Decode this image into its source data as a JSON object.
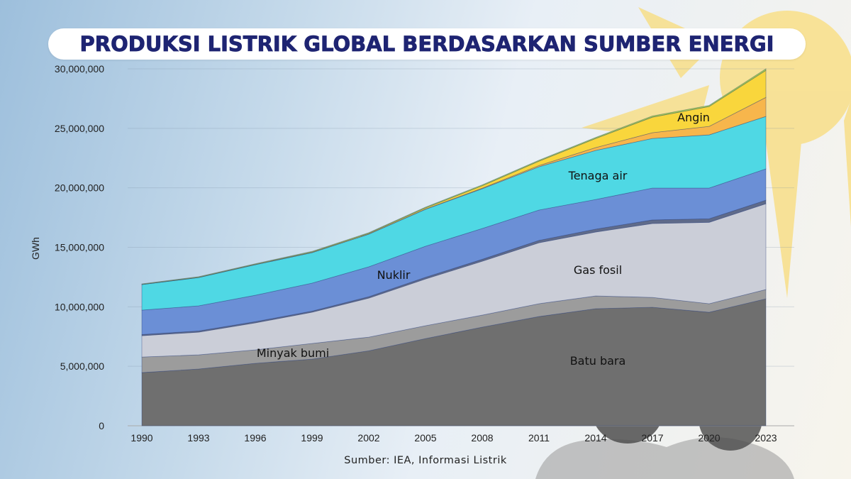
{
  "title": "PRODUKSI LISTRIK GLOBAL BERDASARKAN SUMBER ENERGI",
  "source": "Sumber: IEA, Informasi Listrik",
  "colors": {
    "title": "#1e2472",
    "sun": "#f9dc7a",
    "rocks": "#5b5b5b"
  },
  "chart_data": {
    "type": "area",
    "stacked": true,
    "title": "PRODUKSI LISTRIK GLOBAL BERDASARKAN SUMBER ENERGI",
    "xlabel": "",
    "ylabel": "GWh",
    "ylim": [
      0,
      30000000
    ],
    "grid": true,
    "x": [
      1990,
      1993,
      1996,
      1999,
      2002,
      2005,
      2008,
      2011,
      2014,
      2017,
      2020,
      2023
    ],
    "x_tick_labels": [
      "1990",
      "1993",
      "1996",
      "1999",
      "2002",
      "2005",
      "2008",
      "2011",
      "2014",
      "2017",
      "2020",
      "2023"
    ],
    "y_ticks": [
      0,
      5000000,
      10000000,
      15000000,
      20000000,
      25000000,
      30000000
    ],
    "y_tick_labels": [
      "0",
      "5,000,000",
      "10,000,000",
      "15,000,000",
      "20,000,000",
      "25,000,000",
      "30,000,000"
    ],
    "series": [
      {
        "name": "Batu bara",
        "color": "#6f6f6f",
        "values": [
          4470000,
          4770000,
          5250000,
          5600000,
          6300000,
          7330000,
          8290000,
          9180000,
          9840000,
          9960000,
          9540000,
          10670000
        ]
      },
      {
        "name": "Minyak bumi",
        "color": "#9c9c9c",
        "values": [
          1310000,
          1190000,
          1130000,
          1320000,
          1150000,
          1080000,
          1010000,
          1080000,
          1070000,
          830000,
          720000,
          780000
        ]
      },
      {
        "name": "Gas fosil",
        "color": "#cbced8",
        "values": [
          1790000,
          1910000,
          2270000,
          2620000,
          3280000,
          3930000,
          4530000,
          5120000,
          5370000,
          6210000,
          6840000,
          7210000
        ]
      },
      {
        "color": "#5f6b8a",
        "values": [
          100000,
          100000,
          100000,
          100000,
          120000,
          140000,
          160000,
          200000,
          250000,
          300000,
          300000,
          300000
        ]
      },
      {
        "name": "Nuklir",
        "color": "#6b8fd6",
        "values": [
          2050000,
          2110000,
          2220000,
          2350000,
          2510000,
          2610000,
          2590000,
          2550000,
          2490000,
          2680000,
          2580000,
          2630000
        ]
      },
      {
        "name": "Tenaga air",
        "color": "#4fd8e4",
        "values": [
          2150000,
          2380000,
          2570000,
          2560000,
          2740000,
          3100000,
          3340000,
          3640000,
          4120000,
          4170000,
          4470000,
          4410000
        ]
      },
      {
        "color": "#f7b64c",
        "values": [
          0,
          0,
          0,
          0,
          10000,
          20000,
          50000,
          100000,
          240000,
          480000,
          710000,
          1600000
        ]
      },
      {
        "name": "Angin",
        "color": "#f9d63c",
        "values": [
          10000,
          20000,
          30000,
          50000,
          60000,
          100000,
          200000,
          370000,
          770000,
          1310000,
          1670000,
          2270000
        ]
      },
      {
        "color": "#a9d94a",
        "values": [
          50000,
          50000,
          50000,
          60000,
          60000,
          70000,
          80000,
          80000,
          90000,
          100000,
          100000,
          130000
        ]
      }
    ]
  }
}
